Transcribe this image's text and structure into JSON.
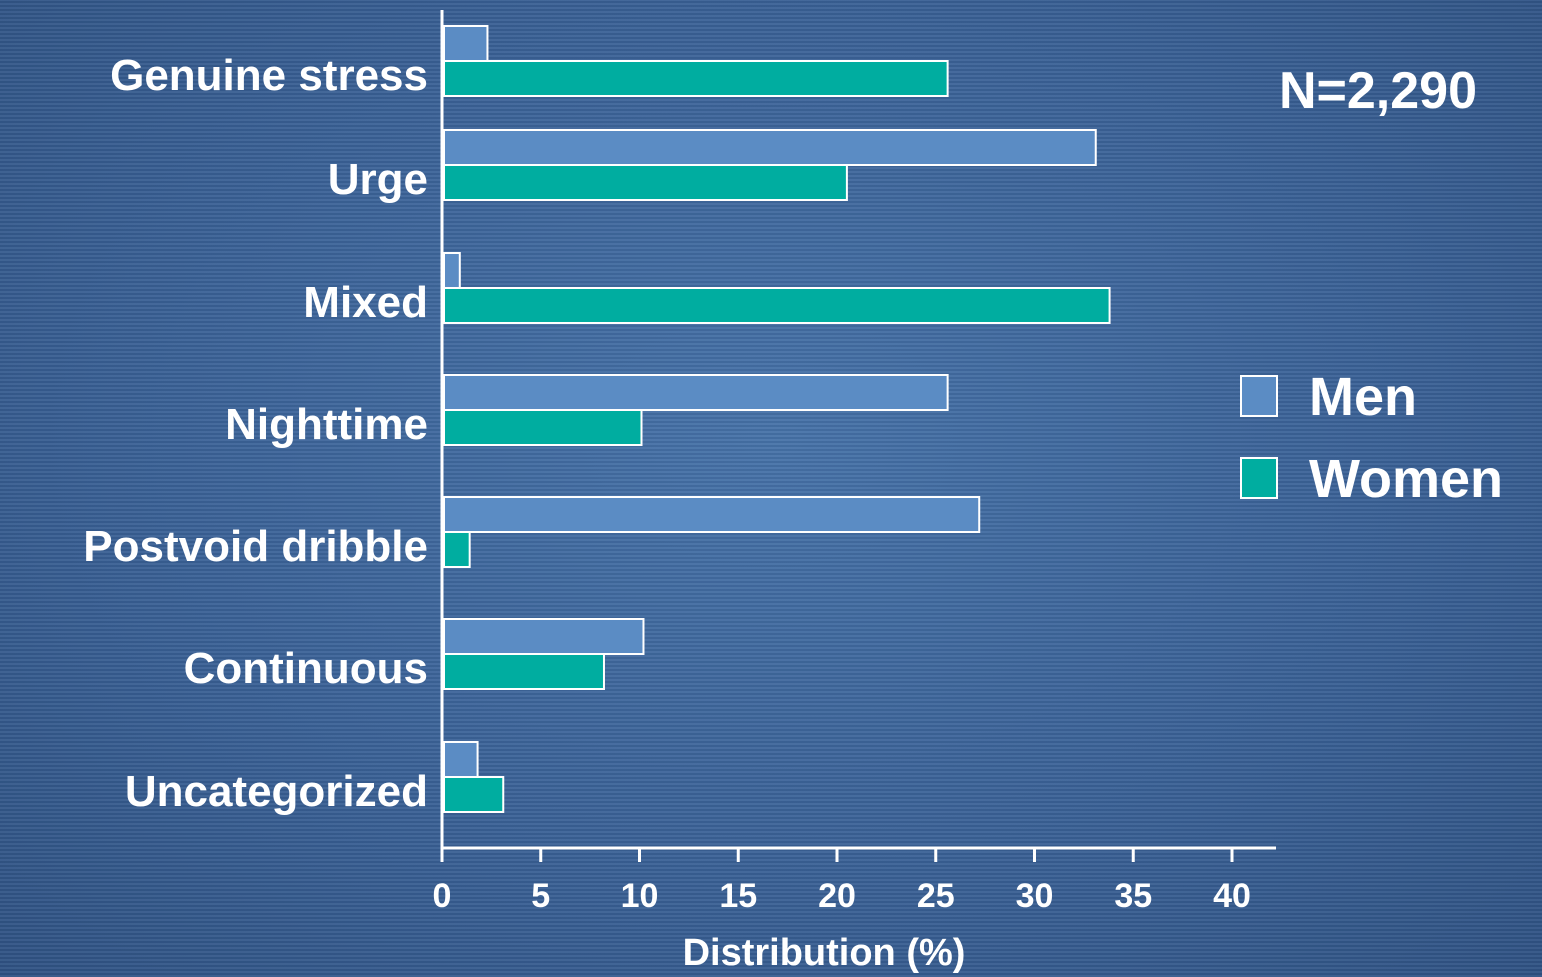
{
  "chart_data": {
    "type": "bar",
    "orientation": "horizontal",
    "categories": [
      "Genuine stress",
      "Urge",
      "Mixed",
      "Nighttime",
      "Postvoid dribble",
      "Continuous",
      "Uncategorized"
    ],
    "series": [
      {
        "name": "Men",
        "color": "#5b8cc4",
        "values": [
          2.2,
          33.0,
          0.8,
          25.5,
          27.1,
          10.1,
          1.7
        ]
      },
      {
        "name": "Women",
        "color": "#00ada0",
        "values": [
          25.5,
          20.4,
          33.7,
          10.0,
          1.3,
          8.1,
          3.0
        ]
      }
    ],
    "xlabel": "Distribution (%)",
    "ylabel": "",
    "xlim": [
      0,
      42
    ],
    "xticks": [
      "0",
      "5",
      "10",
      "15",
      "20",
      "25",
      "30",
      "35",
      "40"
    ],
    "annotation": "N=2,290",
    "legend_position": "right",
    "grid": false
  }
}
